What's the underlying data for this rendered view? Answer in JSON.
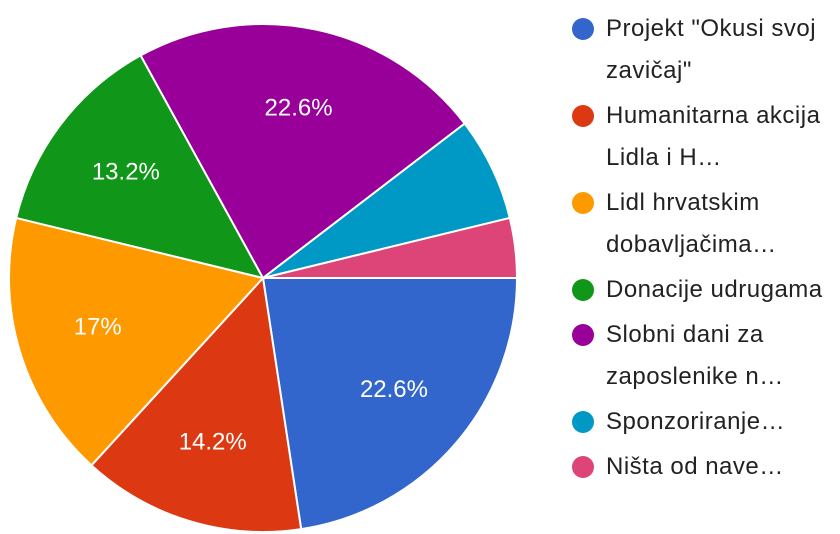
{
  "chart_data": {
    "type": "pie",
    "categories": [
      "Projekt \"Okusi svoj zavičaj\"",
      "Humanitarna akcija Lidla i H…",
      "Lidl hrvatskim dobavljačima…",
      "Donacije udrugama",
      "Slobni dani za zaposlenike n…",
      "Sponzoriranje…",
      "Ništa od nave…"
    ],
    "values": [
      22.6,
      14.2,
      17,
      13.2,
      22.6,
      6.6,
      3.8
    ],
    "value_labels": [
      "22.6%",
      "14.2%",
      "17%",
      "13.2%",
      "22.6%",
      null,
      null
    ],
    "colors": [
      "#3366cc",
      "#dc3912",
      "#ff9900",
      "#109618",
      "#990099",
      "#0099c6",
      "#dd4477"
    ],
    "legend": "right"
  }
}
